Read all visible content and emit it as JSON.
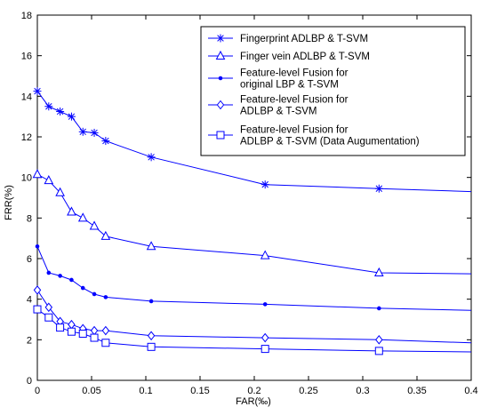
{
  "chart_data": {
    "type": "line",
    "xlabel": "FAR(‰)",
    "ylabel": "FRR(%)",
    "xlim": [
      0,
      0.4
    ],
    "ylim": [
      0,
      18
    ],
    "xticks": [
      "0",
      "0.05",
      "0.1",
      "0.15",
      "0.2",
      "0.25",
      "0.3",
      "0.35",
      "0.4"
    ],
    "yticks": [
      "0",
      "2",
      "4",
      "6",
      "8",
      "10",
      "12",
      "14",
      "16",
      "18"
    ],
    "grid": false,
    "legend_position": "top-right",
    "color": "#0000ff",
    "series": [
      {
        "name": "Fingerprint ADLBP & T-SVM",
        "marker": "star",
        "points": [
          [
            0,
            14.25
          ],
          [
            0.0105,
            13.5
          ],
          [
            0.021,
            13.25
          ],
          [
            0.0315,
            13.0
          ],
          [
            0.042,
            12.25
          ],
          [
            0.0525,
            12.2
          ],
          [
            0.063,
            11.8
          ],
          [
            0.105,
            11.0
          ],
          [
            0.21,
            9.65
          ],
          [
            0.315,
            9.45
          ],
          [
            0.4,
            9.3
          ]
        ],
        "marked": [
          0,
          1,
          2,
          3,
          4,
          5,
          6,
          7,
          8,
          9
        ]
      },
      {
        "name": "Finger vein ADLBP & T-SVM",
        "marker": "triangle",
        "points": [
          [
            0,
            10.15
          ],
          [
            0.0105,
            9.85
          ],
          [
            0.021,
            9.25
          ],
          [
            0.0315,
            8.3
          ],
          [
            0.042,
            8.0
          ],
          [
            0.0525,
            7.6
          ],
          [
            0.063,
            7.1
          ],
          [
            0.105,
            6.6
          ],
          [
            0.21,
            6.15
          ],
          [
            0.315,
            5.3
          ],
          [
            0.4,
            5.25
          ]
        ],
        "marked": [
          0,
          1,
          2,
          3,
          4,
          5,
          6,
          7,
          8,
          9
        ]
      },
      {
        "name": "Feature-level Fusion for original LBP & T-SVM",
        "label_lines": [
          "Feature-level Fusion for",
          "original LBP & T-SVM"
        ],
        "marker": "dot",
        "points": [
          [
            0,
            6.6
          ],
          [
            0.0105,
            5.3
          ],
          [
            0.021,
            5.15
          ],
          [
            0.0315,
            4.95
          ],
          [
            0.042,
            4.55
          ],
          [
            0.0525,
            4.25
          ],
          [
            0.063,
            4.1
          ],
          [
            0.105,
            3.9
          ],
          [
            0.21,
            3.75
          ],
          [
            0.315,
            3.55
          ],
          [
            0.4,
            3.45
          ]
        ],
        "marked": [
          0,
          1,
          2,
          3,
          4,
          5,
          6,
          7,
          8,
          9
        ]
      },
      {
        "name": "Feature-level Fusion for ADLBP & T-SVM",
        "label_lines": [
          "Feature-level Fusion for",
          "ADLBP & T-SVM"
        ],
        "marker": "diamond",
        "points": [
          [
            0,
            4.45
          ],
          [
            0.0105,
            3.6
          ],
          [
            0.021,
            2.9
          ],
          [
            0.0315,
            2.75
          ],
          [
            0.042,
            2.55
          ],
          [
            0.0525,
            2.45
          ],
          [
            0.063,
            2.45
          ],
          [
            0.105,
            2.2
          ],
          [
            0.21,
            2.1
          ],
          [
            0.315,
            2.0
          ],
          [
            0.4,
            1.85
          ]
        ],
        "marked": [
          0,
          1,
          2,
          3,
          4,
          5,
          6,
          7,
          8,
          9
        ]
      },
      {
        "name": "Feature-level Fusion for ADLBP & T-SVM (Data Augumentation)",
        "label_lines": [
          "Feature-level Fusion for",
          "ADLBP & T-SVM (Data Augumentation)"
        ],
        "marker": "square",
        "points": [
          [
            0,
            3.5
          ],
          [
            0.0105,
            3.1
          ],
          [
            0.021,
            2.6
          ],
          [
            0.0315,
            2.4
          ],
          [
            0.042,
            2.3
          ],
          [
            0.0525,
            2.1
          ],
          [
            0.063,
            1.85
          ],
          [
            0.105,
            1.65
          ],
          [
            0.21,
            1.55
          ],
          [
            0.315,
            1.45
          ],
          [
            0.4,
            1.4
          ]
        ],
        "marked": [
          0,
          1,
          2,
          3,
          4,
          5,
          6,
          7,
          8,
          9
        ]
      }
    ]
  }
}
